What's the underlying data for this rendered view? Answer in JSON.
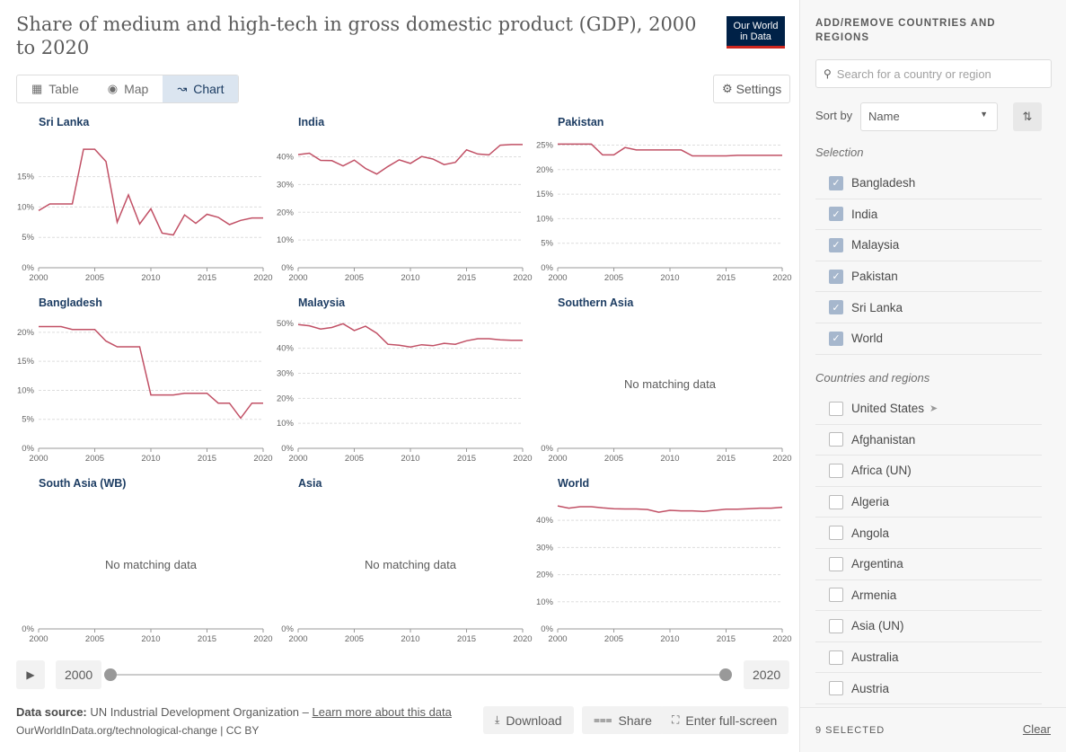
{
  "title": "Share of medium and high-tech in gross domestic product (GDP), 2000 to 2020",
  "logo": {
    "line1": "Our World",
    "line2": "in Data"
  },
  "tabs": [
    {
      "label": "Table",
      "icon": "table-icon"
    },
    {
      "label": "Map",
      "icon": "globe-icon"
    },
    {
      "label": "Chart",
      "icon": "line-chart-icon"
    }
  ],
  "settings_label": "Settings",
  "no_data_text": "No matching data",
  "chart_data": [
    {
      "type": "line",
      "title": "Sri Lanka",
      "x": [
        2000,
        2001,
        2002,
        2003,
        2004,
        2005,
        2006,
        2007,
        2008,
        2009,
        2010,
        2011,
        2012,
        2013,
        2014,
        2015,
        2016,
        2017,
        2018,
        2019,
        2020
      ],
      "values": [
        9.4,
        10.5,
        10.5,
        10.5,
        19.5,
        19.5,
        17.5,
        7.5,
        12,
        7.2,
        9.7,
        5.7,
        5.4,
        8.7,
        7.3,
        8.8,
        8.3,
        7.1,
        7.8,
        8.2,
        8.2
      ],
      "y_ticks": [
        "0%",
        "5%",
        "10%",
        "15%"
      ],
      "ylim": [
        0,
        21
      ],
      "x_ticks": [
        "2000",
        "2005",
        "2010",
        "2015",
        "2020"
      ]
    },
    {
      "type": "line",
      "title": "India",
      "x": [
        2000,
        2001,
        2002,
        2003,
        2004,
        2005,
        2006,
        2007,
        2008,
        2009,
        2010,
        2011,
        2012,
        2013,
        2014,
        2015,
        2016,
        2017,
        2018,
        2019,
        2020
      ],
      "values": [
        40.8,
        41.3,
        38.7,
        38.6,
        36.7,
        38.8,
        35.8,
        33.8,
        36.5,
        38.9,
        37.6,
        40.1,
        39.2,
        37.2,
        38,
        42.5,
        41,
        40.7,
        44.2,
        44.4,
        44.4
      ],
      "y_ticks": [
        "0%",
        "10%",
        "20%",
        "30%",
        "40%"
      ],
      "ylim": [
        0,
        46
      ],
      "x_ticks": [
        "2000",
        "2005",
        "2010",
        "2015",
        "2020"
      ]
    },
    {
      "type": "line",
      "title": "Pakistan",
      "x": [
        2000,
        2001,
        2002,
        2003,
        2004,
        2005,
        2006,
        2007,
        2008,
        2009,
        2010,
        2011,
        2012,
        2013,
        2014,
        2015,
        2016,
        2017,
        2018,
        2019,
        2020
      ],
      "values": [
        25.2,
        25.2,
        25.2,
        25.2,
        23,
        23,
        24.5,
        24,
        24,
        24,
        24,
        24,
        22.8,
        22.8,
        22.8,
        22.8,
        22.9,
        22.9,
        22.9,
        22.9,
        22.9
      ],
      "y_ticks": [
        "0%",
        "5%",
        "10%",
        "15%",
        "20%",
        "25%"
      ],
      "ylim": [
        0,
        26
      ],
      "x_ticks": [
        "2000",
        "2005",
        "2010",
        "2015",
        "2020"
      ]
    },
    {
      "type": "line",
      "title": "Bangladesh",
      "x": [
        2000,
        2001,
        2002,
        2003,
        2004,
        2005,
        2006,
        2007,
        2008,
        2009,
        2010,
        2011,
        2012,
        2013,
        2014,
        2015,
        2016,
        2017,
        2018,
        2019,
        2020
      ],
      "values": [
        21,
        21,
        21,
        20.5,
        20.5,
        20.5,
        18.5,
        17.5,
        17.5,
        17.5,
        9.2,
        9.2,
        9.2,
        9.5,
        9.5,
        9.5,
        7.8,
        7.8,
        5.2,
        7.8,
        7.8
      ],
      "y_ticks": [
        "0%",
        "5%",
        "10%",
        "15%",
        "20%"
      ],
      "ylim": [
        0,
        22
      ],
      "x_ticks": [
        "2000",
        "2005",
        "2010",
        "2015",
        "2020"
      ]
    },
    {
      "type": "line",
      "title": "Malaysia",
      "x": [
        2000,
        2001,
        2002,
        2003,
        2004,
        2005,
        2006,
        2007,
        2008,
        2009,
        2010,
        2011,
        2012,
        2013,
        2014,
        2015,
        2016,
        2017,
        2018,
        2019,
        2020
      ],
      "values": [
        49.5,
        49,
        47.7,
        48.3,
        49.8,
        47.1,
        48.8,
        46,
        41.6,
        41.2,
        40.5,
        41.4,
        41,
        42,
        41.6,
        43,
        43.8,
        43.8,
        43.4,
        43.2,
        43.2
      ],
      "y_ticks": [
        "0%",
        "10%",
        "20%",
        "30%",
        "40%",
        "50%"
      ],
      "ylim": [
        0,
        51
      ],
      "x_ticks": [
        "2000",
        "2005",
        "2010",
        "2015",
        "2020"
      ]
    },
    {
      "type": "line",
      "title": "Southern Asia",
      "x": [],
      "values": [],
      "no_data": true,
      "y_ticks": [
        "0%"
      ],
      "ylim": [
        0,
        1
      ],
      "x_ticks": [
        "2000",
        "2005",
        "2010",
        "2015",
        "2020"
      ]
    },
    {
      "type": "line",
      "title": "South Asia (WB)",
      "x": [],
      "values": [],
      "no_data": true,
      "y_ticks": [
        "0%"
      ],
      "ylim": [
        0,
        1
      ],
      "x_ticks": [
        "2000",
        "2005",
        "2010",
        "2015",
        "2020"
      ]
    },
    {
      "type": "line",
      "title": "Asia",
      "x": [],
      "values": [],
      "no_data": true,
      "y_ticks": [
        "0%"
      ],
      "ylim": [
        0,
        1
      ],
      "x_ticks": [
        "2000",
        "2005",
        "2010",
        "2015",
        "2020"
      ]
    },
    {
      "type": "line",
      "title": "World",
      "x": [
        2000,
        2001,
        2002,
        2003,
        2004,
        2005,
        2006,
        2007,
        2008,
        2009,
        2010,
        2011,
        2012,
        2013,
        2014,
        2015,
        2016,
        2017,
        2018,
        2019,
        2020
      ],
      "values": [
        45.3,
        44.5,
        45,
        45,
        44.6,
        44.3,
        44.2,
        44.2,
        44,
        43,
        43.7,
        43.5,
        43.5,
        43.3,
        43.7,
        44.1,
        44.1,
        44.3,
        44.5,
        44.5,
        44.8
      ],
      "y_ticks": [
        "0%",
        "10%",
        "20%",
        "30%",
        "40%"
      ],
      "ylim": [
        0,
        47
      ],
      "x_ticks": [
        "2000",
        "2005",
        "2010",
        "2015",
        "2020"
      ]
    }
  ],
  "line_color": "#c15065",
  "timeline": {
    "start": "2000",
    "end": "2020"
  },
  "footer": {
    "source_label": "Data source:",
    "source_text": "UN Industrial Development Organization – ",
    "learn_more": "Learn more about this data",
    "url": "OurWorldInData.org/technological-change | CC BY"
  },
  "buttons": {
    "download": "Download",
    "share": "Share",
    "fullscreen": "Enter full-screen"
  },
  "sidebar": {
    "heading": "ADD/REMOVE COUNTRIES AND REGIONS",
    "search_placeholder": "Search for a country or region",
    "sort_label": "Sort by",
    "sort_value": "Name",
    "selection_label": "Selection",
    "selected": [
      "Bangladesh",
      "India",
      "Malaysia",
      "Pakistan",
      "Sri Lanka",
      "World"
    ],
    "regions_label": "Countries and regions",
    "regions": [
      "United States",
      "Afghanistan",
      "Africa (UN)",
      "Algeria",
      "Angola",
      "Argentina",
      "Armenia",
      "Asia (UN)",
      "Australia",
      "Austria"
    ],
    "selected_count": "9 SELECTED",
    "clear": "Clear"
  }
}
